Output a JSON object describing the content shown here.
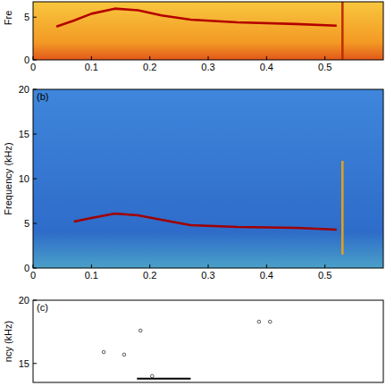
{
  "chart_data": [
    {
      "type": "line",
      "ylabel": "Fre",
      "xlim": [
        0,
        0.6
      ],
      "ylim": [
        0,
        6.8
      ],
      "xticks": [
        0,
        0.1,
        0.2,
        0.3,
        0.4,
        0.5
      ],
      "yticks": [
        0,
        5
      ],
      "series": [
        {
          "type": "line",
          "color": "#b40000",
          "x": [
            0.04,
            0.07,
            0.1,
            0.14,
            0.18,
            0.22,
            0.27,
            0.35,
            0.45,
            0.52
          ],
          "values": [
            3.9,
            4.6,
            5.4,
            6.0,
            5.8,
            5.2,
            4.7,
            4.4,
            4.2,
            4.0
          ]
        },
        {
          "type": "line",
          "color": "#c03000",
          "x": [
            0.53,
            0.53
          ],
          "values": [
            0,
            6.8
          ]
        }
      ]
    },
    {
      "type": "line",
      "title": "(b)",
      "ylabel": "Frequency (kHz)",
      "xlim": [
        0,
        0.6
      ],
      "ylim": [
        0,
        20
      ],
      "xticks": [
        0,
        0.1,
        0.2,
        0.3,
        0.4,
        0.5
      ],
      "yticks": [
        0,
        5,
        10,
        15,
        20
      ],
      "series": [
        {
          "type": "line",
          "color": "#a00000",
          "x": [
            0.07,
            0.1,
            0.14,
            0.18,
            0.22,
            0.27,
            0.35,
            0.45,
            0.52
          ],
          "values": [
            5.2,
            5.6,
            6.1,
            5.9,
            5.4,
            4.8,
            4.6,
            4.5,
            4.3
          ]
        },
        {
          "type": "line",
          "color": "#e0a020",
          "x": [
            0.53,
            0.53
          ],
          "values": [
            1.5,
            12
          ]
        }
      ]
    },
    {
      "type": "scatter",
      "title": "(c)",
      "ylabel": "ncy (kHz)",
      "xlim": [
        0,
        0.6
      ],
      "ylim": [
        13.5,
        20
      ],
      "yticks": [
        15,
        20
      ],
      "tick_labels": "y",
      "series": [
        {
          "type": "scatter",
          "marker": "circle",
          "color": "#333333",
          "x": [
            0.121,
            0.156,
            0.184,
            0.204,
            0.387,
            0.406
          ],
          "values": [
            15.9,
            15.7,
            17.6,
            14.0,
            18.3,
            18.3
          ]
        },
        {
          "type": "line",
          "color": "#000000",
          "x": [
            0.178,
            0.27
          ],
          "values": [
            13.8,
            13.8
          ]
        }
      ]
    }
  ]
}
